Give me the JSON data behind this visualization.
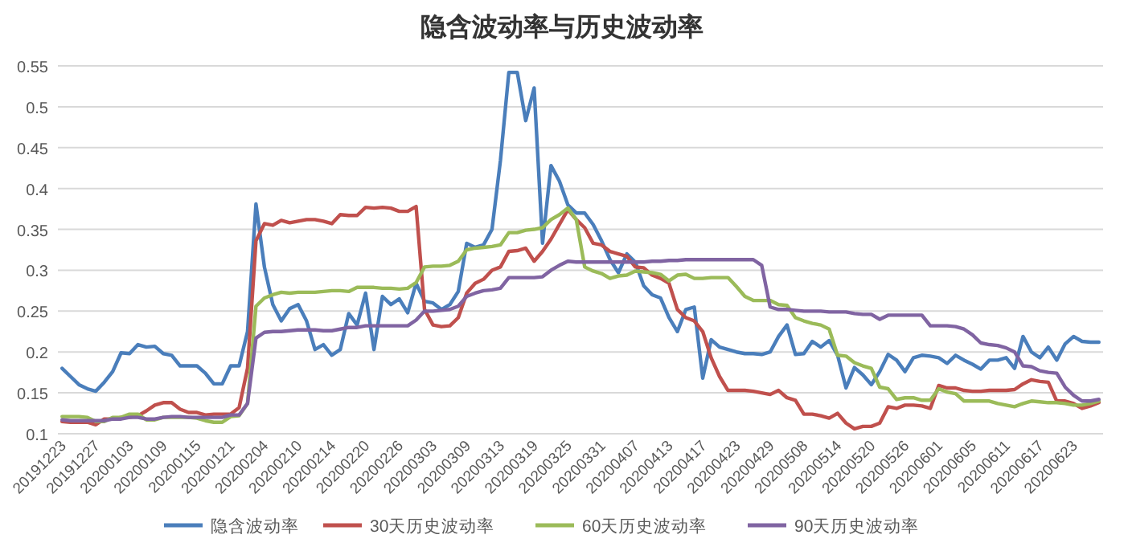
{
  "chart_data": {
    "type": "line",
    "title": "隐含波动率与历史波动率",
    "categories": [
      "20191223",
      null,
      null,
      null,
      "20191227",
      null,
      null,
      null,
      "20200103",
      null,
      null,
      null,
      "20200109",
      null,
      null,
      null,
      "20200115",
      null,
      null,
      null,
      "20200121",
      null,
      null,
      null,
      "20200204",
      null,
      null,
      null,
      "20200210",
      null,
      null,
      null,
      "20200214",
      null,
      null,
      null,
      "20200220",
      null,
      null,
      null,
      "20200226",
      null,
      null,
      null,
      "20200303",
      null,
      null,
      null,
      "20200309",
      null,
      null,
      null,
      "20200313",
      null,
      null,
      null,
      "20200319",
      null,
      null,
      null,
      "20200325",
      null,
      null,
      null,
      "20200331",
      null,
      null,
      null,
      "20200407",
      null,
      null,
      null,
      "20200413",
      null,
      null,
      null,
      "20200417",
      null,
      null,
      null,
      "20200423",
      null,
      null,
      null,
      "20200429",
      null,
      null,
      null,
      "20200508",
      null,
      null,
      null,
      "20200514",
      null,
      null,
      null,
      "20200520",
      null,
      null,
      null,
      "20200526",
      null,
      null,
      null,
      "20200601",
      null,
      null,
      null,
      "20200605",
      null,
      null,
      null,
      "20200611",
      null,
      null,
      null,
      "20200617",
      null,
      null,
      null,
      "20200623",
      null,
      null,
      null
    ],
    "series": [
      {
        "name": "隐含波动率",
        "color": "#4a7ebb",
        "values": [
          0.18,
          0.17,
          0.16,
          0.155,
          0.152,
          0.163,
          0.176,
          0.199,
          0.198,
          0.209,
          0.206,
          0.207,
          0.198,
          0.196,
          0.183,
          0.183,
          0.183,
          0.174,
          0.161,
          0.161,
          0.183,
          0.183,
          0.225,
          0.381,
          0.304,
          0.258,
          0.238,
          0.253,
          0.258,
          0.238,
          0.203,
          0.209,
          0.196,
          0.203,
          0.247,
          0.233,
          0.272,
          0.203,
          0.268,
          0.258,
          0.265,
          0.248,
          0.284,
          0.262,
          0.26,
          0.252,
          0.258,
          0.274,
          0.333,
          0.328,
          0.331,
          0.35,
          0.434,
          0.542,
          0.542,
          0.483,
          0.523,
          0.333,
          0.428,
          0.409,
          0.38,
          0.37,
          0.37,
          0.356,
          0.336,
          0.313,
          0.297,
          0.32,
          0.31,
          0.281,
          0.27,
          0.266,
          0.242,
          0.225,
          0.252,
          0.255,
          0.168,
          0.215,
          0.206,
          0.203,
          0.2,
          0.198,
          0.198,
          0.197,
          0.2,
          0.219,
          0.233,
          0.197,
          0.198,
          0.213,
          0.206,
          0.214,
          0.196,
          0.156,
          0.181,
          0.172,
          0.16,
          0.176,
          0.197,
          0.19,
          0.176,
          0.193,
          0.196,
          0.195,
          0.193,
          0.186,
          0.196,
          0.19,
          0.185,
          0.179,
          0.19,
          0.19,
          0.193,
          0.18,
          0.219,
          0.2,
          0.193,
          0.206,
          0.19,
          0.21,
          0.219,
          0.213,
          0.212,
          0.212
        ]
      },
      {
        "name": "30天历史波动率",
        "color": "#c0504d",
        "values": [
          0.115,
          0.114,
          0.114,
          0.114,
          0.111,
          0.118,
          0.118,
          0.12,
          0.12,
          0.122,
          0.128,
          0.135,
          0.138,
          0.138,
          0.13,
          0.126,
          0.126,
          0.123,
          0.124,
          0.124,
          0.124,
          0.132,
          0.18,
          0.336,
          0.357,
          0.355,
          0.361,
          0.358,
          0.36,
          0.362,
          0.362,
          0.36,
          0.357,
          0.368,
          0.367,
          0.367,
          0.377,
          0.376,
          0.377,
          0.376,
          0.372,
          0.372,
          0.378,
          0.252,
          0.233,
          0.231,
          0.232,
          0.242,
          0.272,
          0.284,
          0.289,
          0.3,
          0.304,
          0.323,
          0.324,
          0.327,
          0.311,
          0.323,
          0.338,
          0.356,
          0.374,
          0.362,
          0.352,
          0.333,
          0.331,
          0.323,
          0.32,
          0.317,
          0.304,
          0.303,
          0.294,
          0.29,
          0.284,
          0.252,
          0.242,
          0.238,
          0.225,
          0.193,
          0.17,
          0.153,
          0.153,
          0.153,
          0.152,
          0.15,
          0.148,
          0.153,
          0.144,
          0.141,
          0.124,
          0.124,
          0.122,
          0.119,
          0.125,
          0.113,
          0.106,
          0.109,
          0.109,
          0.113,
          0.133,
          0.131,
          0.135,
          0.135,
          0.134,
          0.131,
          0.159,
          0.156,
          0.156,
          0.153,
          0.152,
          0.152,
          0.153,
          0.153,
          0.153,
          0.154,
          0.161,
          0.166,
          0.164,
          0.163,
          0.14,
          0.14,
          0.137,
          0.131,
          0.134,
          0.138
        ]
      },
      {
        "name": "60天历史波动率",
        "color": "#9bbb59",
        "values": [
          0.121,
          0.121,
          0.121,
          0.12,
          0.115,
          0.115,
          0.12,
          0.12,
          0.124,
          0.124,
          0.117,
          0.117,
          0.12,
          0.12,
          0.12,
          0.12,
          0.119,
          0.116,
          0.114,
          0.114,
          0.121,
          0.122,
          0.137,
          0.256,
          0.266,
          0.27,
          0.273,
          0.272,
          0.273,
          0.273,
          0.273,
          0.274,
          0.275,
          0.275,
          0.274,
          0.279,
          0.279,
          0.279,
          0.278,
          0.278,
          0.277,
          0.278,
          0.285,
          0.304,
          0.305,
          0.305,
          0.306,
          0.311,
          0.325,
          0.327,
          0.328,
          0.329,
          0.331,
          0.346,
          0.346,
          0.349,
          0.35,
          0.352,
          0.362,
          0.368,
          0.376,
          0.362,
          0.304,
          0.299,
          0.296,
          0.29,
          0.293,
          0.294,
          0.299,
          0.298,
          0.297,
          0.295,
          0.287,
          0.294,
          0.295,
          0.29,
          0.29,
          0.291,
          0.291,
          0.291,
          0.28,
          0.268,
          0.263,
          0.263,
          0.263,
          0.258,
          0.257,
          0.242,
          0.238,
          0.235,
          0.233,
          0.228,
          0.196,
          0.195,
          0.187,
          0.183,
          0.18,
          0.157,
          0.155,
          0.142,
          0.144,
          0.144,
          0.141,
          0.141,
          0.155,
          0.151,
          0.149,
          0.14,
          0.14,
          0.14,
          0.14,
          0.137,
          0.135,
          0.133,
          0.137,
          0.14,
          0.139,
          0.138,
          0.138,
          0.137,
          0.135,
          0.135,
          0.137,
          0.14
        ]
      },
      {
        "name": "90天历史波动率",
        "color": "#8064a2",
        "values": [
          0.117,
          0.116,
          0.116,
          0.116,
          0.116,
          0.116,
          0.118,
          0.118,
          0.12,
          0.12,
          0.118,
          0.118,
          0.12,
          0.121,
          0.121,
          0.12,
          0.12,
          0.12,
          0.12,
          0.12,
          0.123,
          0.123,
          0.137,
          0.217,
          0.224,
          0.225,
          0.225,
          0.226,
          0.227,
          0.227,
          0.227,
          0.226,
          0.226,
          0.228,
          0.23,
          0.23,
          0.232,
          0.232,
          0.232,
          0.232,
          0.232,
          0.232,
          0.239,
          0.25,
          0.25,
          0.251,
          0.252,
          0.256,
          0.268,
          0.272,
          0.275,
          0.276,
          0.278,
          0.291,
          0.291,
          0.291,
          0.291,
          0.292,
          0.3,
          0.306,
          0.311,
          0.31,
          0.31,
          0.31,
          0.31,
          0.31,
          0.31,
          0.31,
          0.31,
          0.31,
          0.311,
          0.311,
          0.312,
          0.312,
          0.313,
          0.313,
          0.313,
          0.313,
          0.313,
          0.313,
          0.313,
          0.313,
          0.313,
          0.306,
          0.255,
          0.252,
          0.252,
          0.251,
          0.25,
          0.25,
          0.25,
          0.249,
          0.249,
          0.249,
          0.247,
          0.246,
          0.246,
          0.24,
          0.245,
          0.245,
          0.245,
          0.245,
          0.245,
          0.232,
          0.232,
          0.232,
          0.231,
          0.228,
          0.221,
          0.211,
          0.209,
          0.208,
          0.205,
          0.2,
          0.183,
          0.182,
          0.177,
          0.175,
          0.174,
          0.157,
          0.147,
          0.14,
          0.14,
          0.142
        ]
      }
    ],
    "ylim": [
      0.1,
      0.55
    ],
    "yticks": [
      0.1,
      0.15,
      0.2,
      0.25,
      0.3,
      0.35,
      0.4,
      0.45,
      0.5,
      0.55
    ],
    "grid": "y",
    "legend": "bottom"
  }
}
